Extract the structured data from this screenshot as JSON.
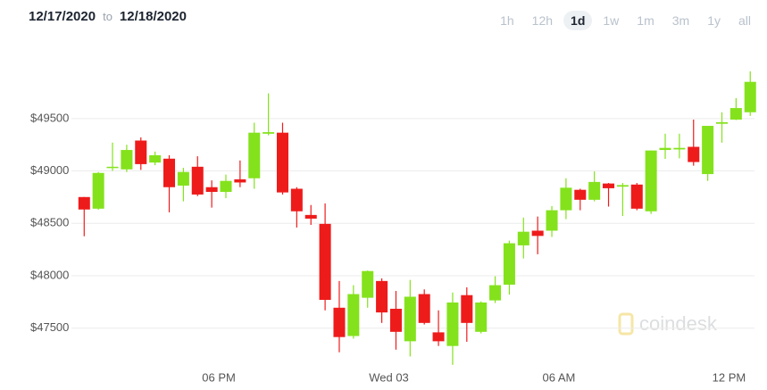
{
  "header": {
    "from": "12/17/2020",
    "to_word": "to",
    "to": "12/18/2020",
    "ranges": [
      "1h",
      "12h",
      "1d",
      "1w",
      "1m",
      "3m",
      "1y",
      "all"
    ],
    "selected_index": 2
  },
  "watermark": "coindesk",
  "chart_data": {
    "type": "candlestick",
    "up_color": "#84e21c",
    "down_color": "#ee1b1b",
    "grid": true,
    "x": [
      13.25,
      13.75,
      14.25,
      14.75,
      15.25,
      15.75,
      16.25,
      16.75,
      17.25,
      17.75,
      18.25,
      18.75,
      19.25,
      19.75,
      20.25,
      20.75,
      21.25,
      21.75,
      22.25,
      22.75,
      23.25,
      23.75,
      24.25,
      24.75,
      25.25,
      25.75,
      26.25,
      26.75,
      27.25,
      27.75,
      28.25,
      28.75,
      29.25,
      29.75,
      30.25,
      30.75,
      31.25,
      31.75,
      32.25,
      32.75,
      33.25,
      33.75,
      34.25,
      34.75,
      35.25,
      35.75,
      36.25,
      36.75
    ],
    "open": [
      48751,
      48640,
      49030,
      49015,
      49290,
      49080,
      49117,
      48860,
      49040,
      48845,
      48800,
      48920,
      48930,
      49355,
      49365,
      48830,
      48580,
      48495,
      47695,
      47425,
      47790,
      47950,
      47685,
      47375,
      47825,
      47460,
      47330,
      47815,
      47465,
      47765,
      47915,
      48290,
      48430,
      48430,
      48625,
      48820,
      48725,
      48880,
      48850,
      48870,
      48615,
      49200,
      49205,
      49230,
      48970,
      49450,
      49490,
      49560
    ],
    "high": [
      48751,
      48990,
      49270,
      49250,
      49320,
      49185,
      49150,
      49030,
      49140,
      48910,
      48965,
      49100,
      49460,
      49740,
      49460,
      48845,
      48675,
      48690,
      47950,
      47910,
      48050,
      47975,
      47855,
      47960,
      47870,
      47670,
      47840,
      47890,
      47755,
      47995,
      48335,
      48555,
      48565,
      48665,
      48930,
      48830,
      48995,
      48885,
      48885,
      48885,
      49195,
      49355,
      49355,
      49490,
      49430,
      49560,
      49695,
      49950
    ],
    "low": [
      48377,
      48630,
      49000,
      48990,
      49010,
      49055,
      48605,
      48710,
      48760,
      48650,
      48740,
      48845,
      48830,
      49340,
      48775,
      48460,
      48485,
      47670,
      47270,
      47400,
      47695,
      47550,
      47295,
      47230,
      47535,
      47330,
      47150,
      47370,
      47450,
      47740,
      47820,
      48165,
      48205,
      48370,
      48540,
      48625,
      48710,
      48660,
      48570,
      48625,
      48590,
      49115,
      49120,
      49050,
      48905,
      49270,
      49485,
      49525
    ],
    "close": [
      48632,
      48981,
      49040,
      49200,
      49065,
      49150,
      48845,
      48990,
      48775,
      48800,
      48905,
      48890,
      49365,
      49370,
      48795,
      48615,
      48545,
      47770,
      47415,
      47825,
      48045,
      47650,
      47465,
      47800,
      47550,
      47375,
      47745,
      47550,
      47745,
      47910,
      48310,
      48420,
      48380,
      48625,
      48840,
      48725,
      48895,
      48835,
      48865,
      48640,
      49195,
      49220,
      49220,
      49085,
      49430,
      49465,
      49600,
      49850
    ],
    "xlim": [
      12.8,
      36.9
    ],
    "xticks": [
      {
        "value": 18,
        "label": "06 PM"
      },
      {
        "value": 24,
        "label": "Wed 03"
      },
      {
        "value": 30,
        "label": "06 AM"
      },
      {
        "value": 36,
        "label": "12 PM"
      }
    ],
    "ylim": [
      46910,
      50120
    ],
    "yticks": [
      {
        "value": 47500,
        "label": "$47500"
      },
      {
        "value": 48000,
        "label": "$48000"
      },
      {
        "value": 48500,
        "label": "$48500"
      },
      {
        "value": 49000,
        "label": "$49000"
      },
      {
        "value": 49500,
        "label": "$49500"
      }
    ]
  }
}
